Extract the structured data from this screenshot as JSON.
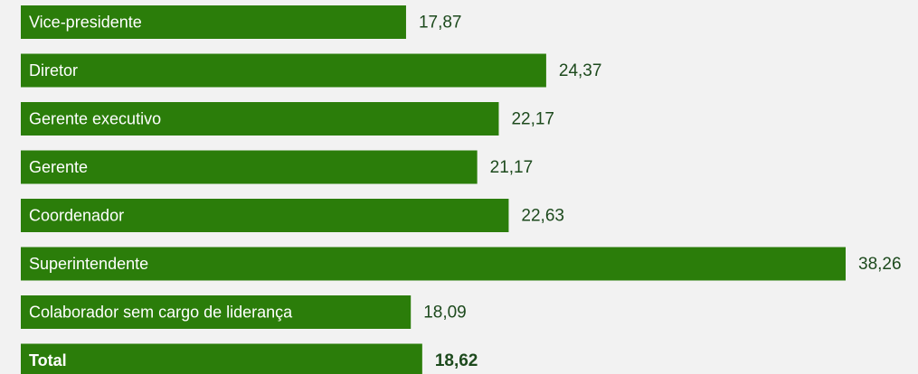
{
  "chart_data": {
    "type": "barh",
    "categories": [
      "Vice-presidente",
      "Diretor",
      "Gerente executivo",
      "Gerente",
      "Coordenador",
      "Superintendente",
      "Colaborador sem cargo de liderança",
      "Total"
    ],
    "values": [
      17.87,
      24.37,
      22.17,
      21.17,
      22.63,
      38.26,
      18.09,
      18.62
    ],
    "value_labels": [
      "17,87",
      "24,37",
      "22,17",
      "21,17",
      "22,63",
      "38,26",
      "18,09",
      "18,62"
    ],
    "color": "#2b7d0a"
  }
}
